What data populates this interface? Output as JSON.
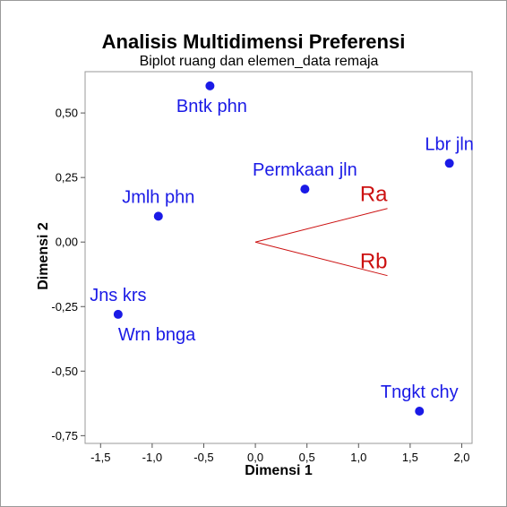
{
  "chart_data": {
    "type": "scatter",
    "title": "Analisis Multidimensi Preferensi",
    "subtitle": "Biplot ruang dan elemen_data remaja",
    "xlabel": "Dimensi 1",
    "ylabel": "Dimensi 2",
    "xlim": [
      -1.65,
      2.1
    ],
    "ylim": [
      -0.78,
      0.66
    ],
    "xticks": [
      -1.5,
      -1.0,
      -0.5,
      0.0,
      0.5,
      1.0,
      1.5,
      2.0
    ],
    "xtick_labels": [
      "-1,5",
      "-1,0",
      "-0,5",
      "0,0",
      "0,5",
      "1,0",
      "1,5",
      "2,0"
    ],
    "yticks": [
      -0.75,
      -0.5,
      -0.25,
      0.0,
      0.25,
      0.5
    ],
    "ytick_labels": [
      "-0,75",
      "-0,50",
      "-0,25",
      "0,00",
      "0,25",
      "0,50"
    ],
    "grid": false,
    "point_color": "#1a1ae6",
    "vector_color": "#cc1111",
    "points": [
      {
        "label": "Bntk phn",
        "x": -0.44,
        "y": 0.605,
        "label_pos": "below"
      },
      {
        "label": "Lbr jln",
        "x": 1.88,
        "y": 0.305,
        "label_pos": "above"
      },
      {
        "label": "Permkaan jln",
        "x": 0.48,
        "y": 0.205,
        "label_pos": "above"
      },
      {
        "label": "Jmlh phn",
        "x": -0.94,
        "y": 0.1,
        "label_pos": "above"
      },
      {
        "label": "Jns krs",
        "x": -1.33,
        "y": -0.28,
        "label_pos": "above"
      },
      {
        "label": "Wrn bnga",
        "x": -1.33,
        "y": -0.28,
        "label_pos": "below"
      },
      {
        "label": "Tngkt chy",
        "x": 1.59,
        "y": -0.655,
        "label_pos": "above"
      }
    ],
    "vectors": [
      {
        "label": "Ra",
        "x": 1.28,
        "y": 0.13
      },
      {
        "label": "Rb",
        "x": 1.28,
        "y": -0.13
      }
    ]
  }
}
